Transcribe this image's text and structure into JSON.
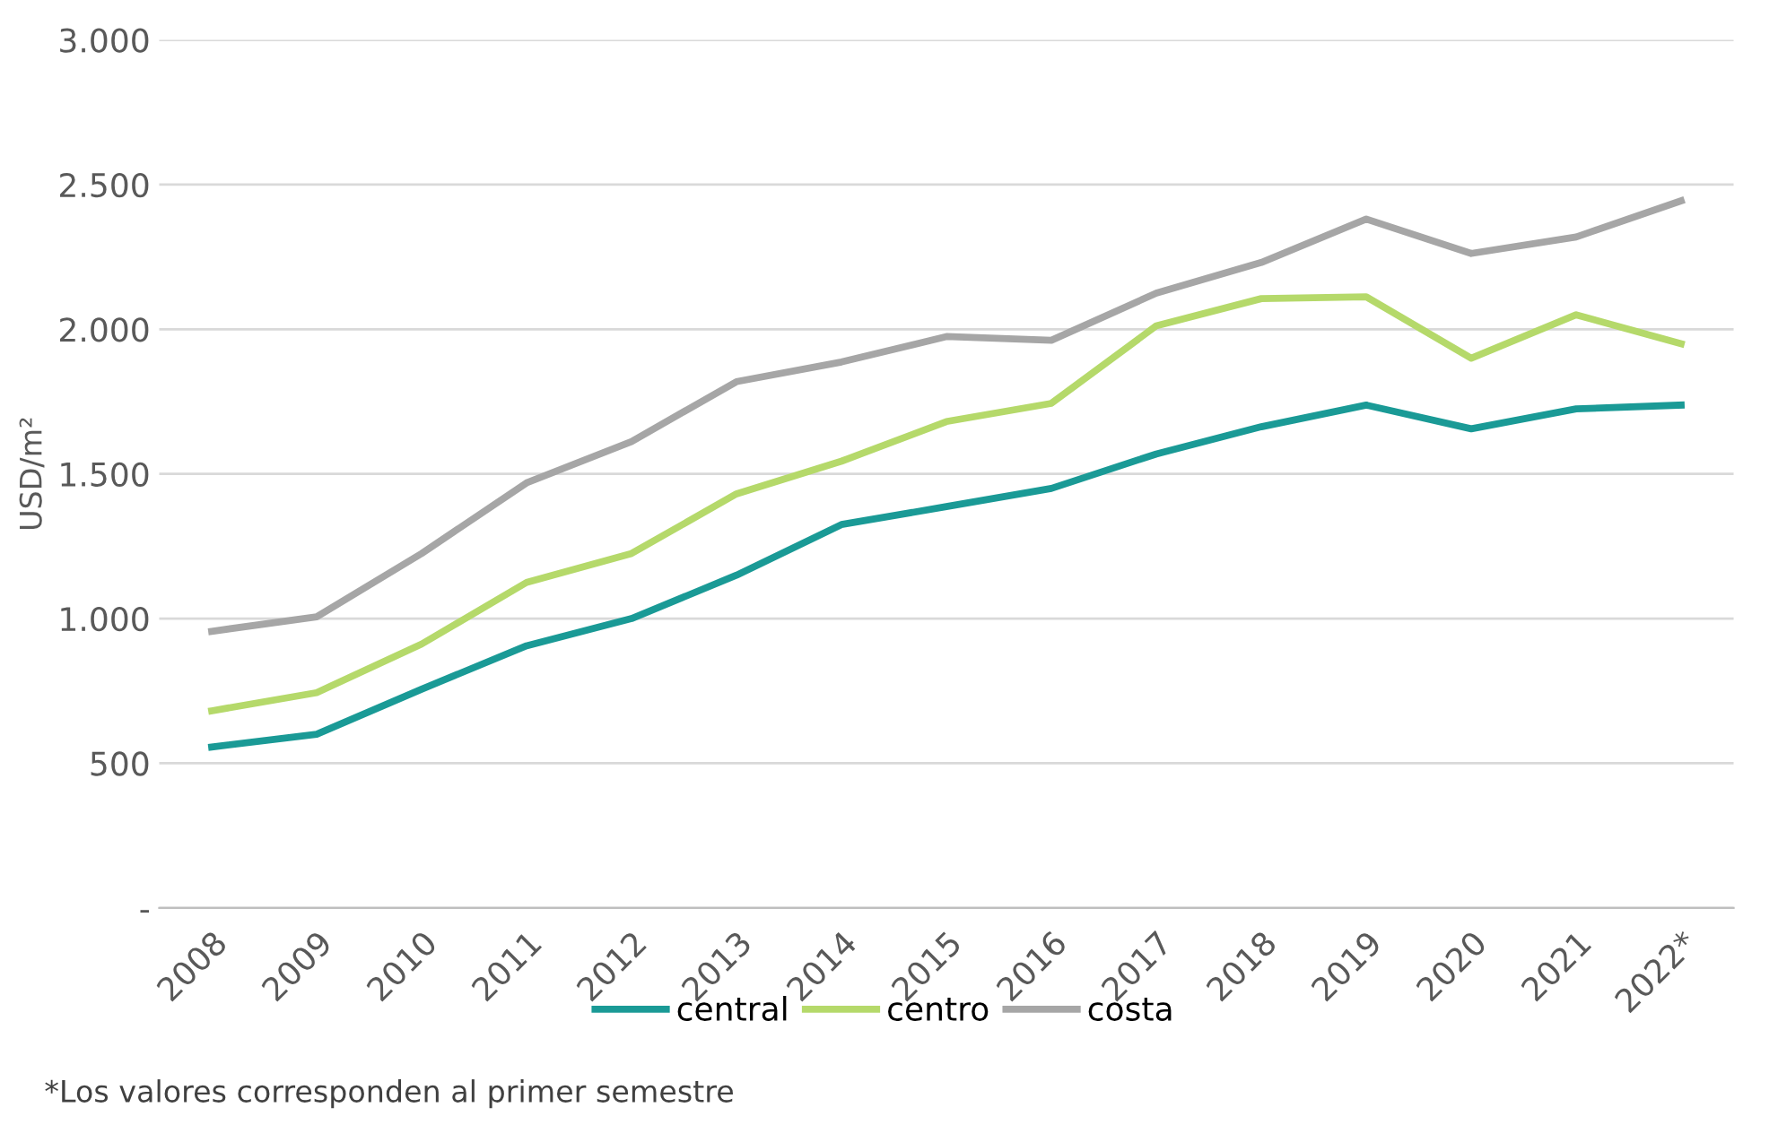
{
  "chart_data": {
    "type": "line",
    "ylabel": "USD/m²",
    "categories": [
      "2008",
      "2009",
      "2010",
      "2011",
      "2012",
      "2013",
      "2014",
      "2015",
      "2016",
      "2017",
      "2018",
      "2019",
      "2020",
      "2021",
      "2022*"
    ],
    "series": [
      {
        "name": "central",
        "color": "#1a9a96",
        "values": [
          556,
          600,
          756,
          906,
          1000,
          1150,
          1325,
          1387,
          1450,
          1569,
          1663,
          1738,
          1656,
          1725,
          1738
        ]
      },
      {
        "name": "centro",
        "color": "#b5d96a",
        "values": [
          681,
          744,
          912,
          1125,
          1225,
          1431,
          1544,
          1681,
          1744,
          2012,
          2106,
          2112,
          1900,
          2050,
          1950
        ]
      },
      {
        "name": "costa",
        "color": "#a6a6a6",
        "values": [
          956,
          1006,
          1225,
          1469,
          1612,
          1819,
          1887,
          1975,
          1962,
          2125,
          2231,
          2381,
          2262,
          2319,
          2444
        ]
      }
    ],
    "ylim": [
      0,
      3000
    ],
    "yticks": [
      {
        "value": 0,
        "label": "-"
      },
      {
        "value": 500,
        "label": "500"
      },
      {
        "value": 1000,
        "label": "1.000"
      },
      {
        "value": 1500,
        "label": "1.500"
      },
      {
        "value": 2000,
        "label": "2.000"
      },
      {
        "value": 2500,
        "label": "2.500"
      },
      {
        "value": 3000,
        "label": "3.000"
      }
    ],
    "grid": "y",
    "legend": "bottom",
    "marker": "none",
    "line_style": "solid",
    "annotations": [
      "*Los valores corresponden al primer semestre"
    ]
  }
}
